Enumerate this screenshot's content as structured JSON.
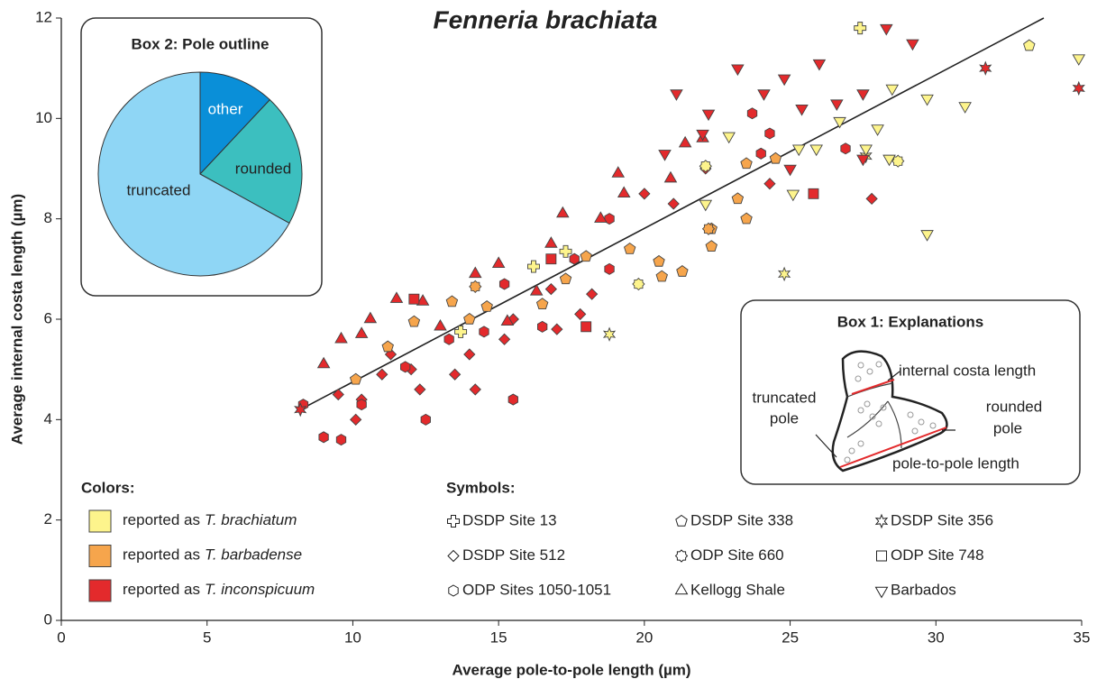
{
  "chart_data": {
    "type": "scatter",
    "title": "Fenneria brachiata",
    "xlabel": "Average pole-to-pole length (µm)",
    "ylabel": "Average internal costa length (µm)",
    "xlim": [
      0,
      35
    ],
    "ylim": [
      0,
      12
    ],
    "xticks": [
      0,
      5,
      10,
      15,
      20,
      25,
      30,
      35
    ],
    "yticks": [
      0,
      2,
      4,
      6,
      8,
      10,
      12
    ],
    "fit_line": {
      "x": [
        8.2,
        33.7
      ],
      "y": [
        4.2,
        12.0
      ]
    },
    "color_legend_title": "Colors:",
    "colors": [
      {
        "prefix": "reported as",
        "taxon": "T. brachiatum",
        "color": "#fdf48c"
      },
      {
        "prefix": "reported as",
        "taxon": "T. barbadense",
        "color": "#f6a54c"
      },
      {
        "prefix": "reported as",
        "taxon": "T. inconspicuum",
        "color": "#e32a2c"
      }
    ],
    "symbol_legend_title": "Symbols:",
    "series": [
      {
        "name": "DSDP Site 13",
        "shape": "cross",
        "groups": [
          {
            "color": "#fdf48c",
            "x": [
              27.4,
              16.2,
              17.3,
              13.7
            ],
            "y": [
              11.8,
              7.05,
              7.35,
              5.75
            ]
          }
        ]
      },
      {
        "name": "DSDP Site 512",
        "shape": "diamond",
        "groups": [
          {
            "color": "#e32a2c",
            "x": [
              9.5,
              10.1,
              10.3,
              11.0,
              11.3,
              12.0,
              12.3,
              13.5,
              14.0,
              14.2,
              15.2,
              15.5,
              17.0,
              17.8,
              18.2,
              20.0,
              22.1,
              24.3,
              27.8,
              21.0,
              16.8
            ],
            "y": [
              4.5,
              4.0,
              4.4,
              4.9,
              5.3,
              5.0,
              4.6,
              4.9,
              5.3,
              4.6,
              5.6,
              6.0,
              5.8,
              6.1,
              6.5,
              8.5,
              9.0,
              8.7,
              8.4,
              8.3,
              6.6
            ]
          }
        ]
      },
      {
        "name": "ODP Sites 1050-1051",
        "shape": "hexagon",
        "groups": [
          {
            "color": "#e32a2c",
            "x": [
              9.0,
              9.6,
              8.3,
              10.3,
              12.5,
              15.5,
              16.5,
              11.8,
              13.3,
              18.8,
              18.8,
              24.0,
              24.3,
              23.7,
              26.9,
              17.6,
              15.2,
              14.5
            ],
            "y": [
              3.65,
              3.6,
              4.3,
              4.3,
              4.0,
              4.4,
              5.85,
              5.05,
              5.6,
              8.0,
              7.0,
              9.3,
              9.7,
              10.1,
              9.4,
              7.2,
              6.7,
              5.75
            ]
          }
        ]
      },
      {
        "name": "DSDP Site 338",
        "shape": "pentagon",
        "groups": [
          {
            "color": "#fdf48c",
            "x": [
              33.2
            ],
            "y": [
              11.45
            ]
          },
          {
            "color": "#f6a54c",
            "x": [
              24.5,
              22.3,
              23.5,
              23.2,
              22.3,
              20.5,
              21.3,
              20.6,
              19.5,
              18.0,
              17.3,
              16.5,
              14.6,
              14.0,
              13.4,
              12.1,
              11.2,
              10.1,
              23.5
            ],
            "y": [
              9.2,
              7.8,
              8.0,
              8.4,
              7.45,
              7.15,
              6.95,
              6.85,
              7.4,
              7.25,
              6.8,
              6.3,
              6.25,
              6.0,
              6.35,
              5.95,
              5.45,
              4.8,
              9.1
            ]
          }
        ]
      },
      {
        "name": "ODP Site 660",
        "shape": "gear",
        "groups": [
          {
            "color": "#fdf48c",
            "x": [
              19.8,
              28.7,
              22.1
            ],
            "y": [
              6.7,
              9.15,
              9.05
            ]
          },
          {
            "color": "#f6a54c",
            "x": [
              22.2,
              14.2
            ],
            "y": [
              7.8,
              6.65
            ]
          }
        ]
      },
      {
        "name": "Kellogg Shale",
        "shape": "triangle-up",
        "groups": [
          {
            "color": "#e32a2c",
            "x": [
              9.0,
              9.6,
              10.3,
              10.6,
              11.5,
              12.4,
              13.0,
              14.2,
              15.0,
              16.3,
              16.8,
              17.2,
              18.5,
              19.1,
              19.3,
              21.4,
              22.0,
              20.9,
              15.3
            ],
            "y": [
              5.1,
              5.6,
              5.7,
              6.0,
              6.4,
              6.35,
              5.85,
              6.9,
              7.1,
              6.55,
              7.5,
              8.1,
              8.0,
              8.9,
              8.5,
              9.5,
              9.6,
              8.8,
              5.95
            ]
          }
        ]
      },
      {
        "name": "DSDP Site 356",
        "shape": "star",
        "groups": [
          {
            "color": "#fdf48c",
            "x": [
              24.8,
              18.8,
              27.6
            ],
            "y": [
              6.9,
              5.7,
              9.25
            ]
          },
          {
            "color": "#e32a2c",
            "x": [
              31.7,
              34.9,
              8.2
            ],
            "y": [
              11.0,
              10.6,
              4.2
            ]
          }
        ]
      },
      {
        "name": "ODP Site 748",
        "shape": "square",
        "groups": [
          {
            "color": "#e32a2c",
            "x": [
              12.1,
              16.8,
              25.8,
              18.0
            ],
            "y": [
              6.4,
              7.2,
              8.5,
              5.85
            ]
          }
        ]
      },
      {
        "name": "Barbados",
        "shape": "triangle-down",
        "groups": [
          {
            "color": "#e32a2c",
            "x": [
              21.1,
              22.2,
              23.2,
              24.1,
              24.8,
              26.0,
              26.6,
              27.5,
              28.3,
              29.2,
              25.4,
              27.5,
              22.0,
              20.7,
              25.0
            ],
            "y": [
              10.5,
              10.1,
              11.0,
              10.5,
              10.8,
              11.1,
              10.3,
              10.5,
              11.8,
              11.5,
              10.2,
              9.2,
              9.7,
              9.3,
              9.0
            ]
          },
          {
            "color": "#fdf48c",
            "x": [
              34.9,
              31.0,
              29.7,
              28.5,
              29.7,
              25.1,
              28.0,
              26.7,
              25.3,
              22.9,
              22.1,
              27.6,
              28.4,
              25.9
            ],
            "y": [
              11.2,
              10.25,
              10.4,
              10.6,
              7.7,
              8.5,
              9.8,
              9.95,
              9.4,
              9.65,
              8.3,
              9.4,
              9.2,
              9.4
            ]
          }
        ]
      }
    ],
    "pie": {
      "title": "Box 2: Pole outline",
      "labels": [
        "other",
        "rounded",
        "truncated"
      ],
      "values": [
        12,
        21,
        67
      ],
      "colors": [
        "#0a8fd8",
        "#3cbfbf",
        "#8fd6f5"
      ]
    },
    "box1": {
      "title": "Box 1: Explanations",
      "labels": [
        "internal costa length",
        "truncated",
        "pole",
        "rounded",
        "pole",
        "pole-to-pole length"
      ]
    }
  }
}
